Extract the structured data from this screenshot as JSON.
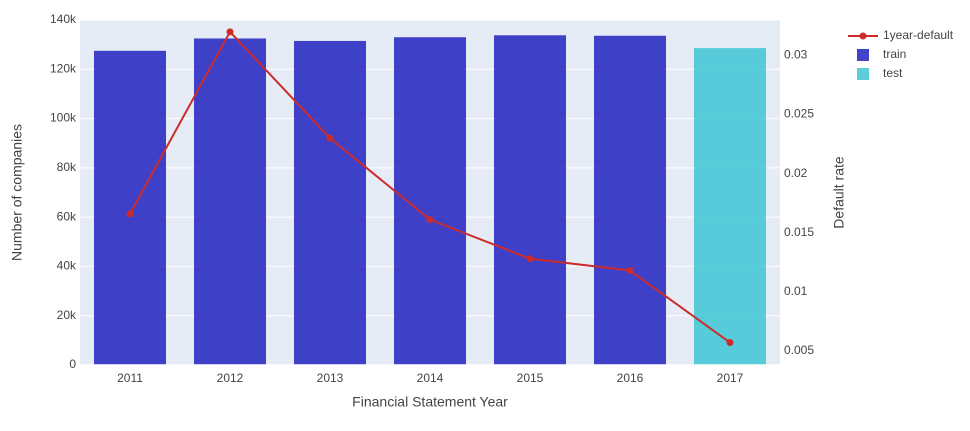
{
  "chart_data": {
    "type": "bar",
    "categories": [
      "2011",
      "2012",
      "2013",
      "2014",
      "2015",
      "2016",
      "2017"
    ],
    "series": [
      {
        "name": "train",
        "type": "bar",
        "axis": "left",
        "color": "#2222c0",
        "values": [
          127500,
          132500,
          131500,
          133000,
          133800,
          133600,
          null
        ]
      },
      {
        "name": "test",
        "type": "bar",
        "axis": "left",
        "color": "#3ec6d4",
        "values": [
          null,
          null,
          null,
          null,
          null,
          null,
          128600
        ]
      },
      {
        "name": "1year-default",
        "type": "line",
        "axis": "right",
        "color": "#cc2b2b",
        "values": [
          0.0166,
          0.032,
          0.023,
          0.0161,
          0.0128,
          0.0118,
          0.0057
        ]
      }
    ],
    "xlabel": "Financial Statement Year",
    "ylabel": "Number of companies",
    "y2label": "Default rate",
    "ylim": [
      0,
      140000
    ],
    "y2lim": [
      0.0038,
      0.033
    ],
    "yticks": [
      0,
      20000,
      40000,
      60000,
      80000,
      100000,
      120000,
      140000
    ],
    "yticklabels": [
      "0",
      "20k",
      "40k",
      "60k",
      "80k",
      "100k",
      "120k",
      "140k"
    ],
    "y2ticks": [
      0.005,
      0.01,
      0.015,
      0.02,
      0.025,
      0.03
    ],
    "y2ticklabels": [
      "0.005",
      "0.01",
      "0.015",
      "0.02",
      "0.025",
      "0.03"
    ],
    "legend": [
      {
        "label": "1year-default",
        "kind": "line",
        "color": "#cc2b2b"
      },
      {
        "label": "train",
        "kind": "bar",
        "color": "#2222c0"
      },
      {
        "label": "test",
        "kind": "bar",
        "color": "#3ec6d4"
      }
    ],
    "legend_position": "top-right",
    "grid": true,
    "plot_background": "#e5ecf6"
  }
}
